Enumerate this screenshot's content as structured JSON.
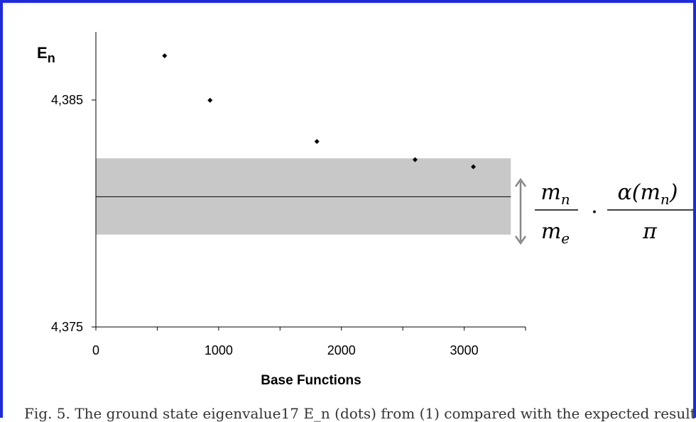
{
  "chart_data": {
    "type": "scatter",
    "ylabel_main": "E",
    "ylabel_sub": "n",
    "xlabel": "Base Functions",
    "xlim": [
      0,
      3500
    ],
    "ylim": [
      4.375,
      4.388
    ],
    "x_ticks": [
      0,
      1000,
      2000,
      3000
    ],
    "x_tick_labels": [
      "0",
      "1000",
      "2000",
      "3000"
    ],
    "y_ticks": [
      4.375,
      4.385
    ],
    "y_tick_labels": [
      "4,375",
      "4,385"
    ],
    "points": [
      {
        "x": 560,
        "y": 4.38695
      },
      {
        "x": 930,
        "y": 4.38499
      },
      {
        "x": 1800,
        "y": 4.38317
      },
      {
        "x": 2600,
        "y": 4.38237
      },
      {
        "x": 3075,
        "y": 4.38206
      }
    ],
    "expected_value": 4.38074,
    "band": [
      4.37907,
      4.38243
    ],
    "band_color": "#c8c8c8",
    "annotation": {
      "num1": "m",
      "num1_sub": "n",
      "den1": "m",
      "den1_sub": "e",
      "dot": "·",
      "num2_pre": "α(m",
      "num2_sub": "n",
      "num2_post": ")",
      "den2": "π"
    }
  },
  "caption": "Fig. 5.  The ground state eigenvalue17 E_n (dots) from (1) compared with the expected result"
}
